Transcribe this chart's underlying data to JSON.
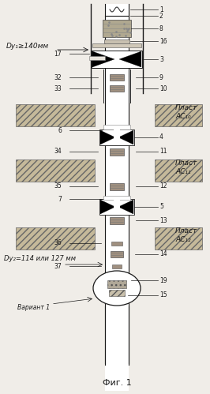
{
  "bg_color": "#f0ede8",
  "line_color": "#1a1a1a",
  "title": "Фиг. 1",
  "fig_width": 2.66,
  "fig_height": 4.99,
  "dpi": 100,
  "label_dy1": "Dу₁≥140мм",
  "label_dy2": "Dу₂=114 или 127 мм",
  "label_variant": "Вариант 1",
  "plast_ac10": "Пласт\nАС₁₀",
  "plast_ac11": "Пласт\nАС₁₁",
  "plast_ac12": "Пласт\nАС₁₂"
}
